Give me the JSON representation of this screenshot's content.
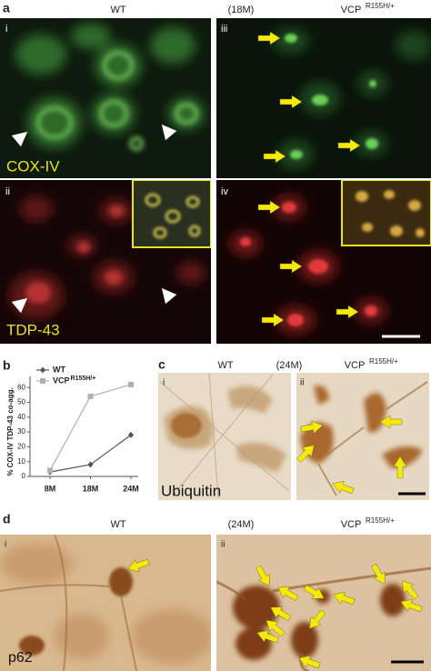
{
  "panels": {
    "a": {
      "label": "a",
      "wt": "WT",
      "age": "(18M)",
      "vcp": "VCP",
      "vcp_sup": "R155H/+",
      "sub": [
        "i",
        "ii",
        "iii",
        "iv"
      ],
      "stains": [
        "COX-IV",
        "TDP-43"
      ]
    },
    "b": {
      "label": "b"
    },
    "c": {
      "label": "c",
      "wt": "WT",
      "age": "(24M)",
      "vcp": "VCP",
      "vcp_sup": "R155H/+",
      "sub": [
        "i",
        "ii"
      ],
      "stain": "Ubiquitin"
    },
    "d": {
      "label": "d",
      "wt": "WT",
      "age": "(24M)",
      "vcp": "VCP",
      "vcp_sup": "R155H/+",
      "sub": [
        "i",
        "ii"
      ],
      "stain": "p62"
    }
  },
  "chart_data": {
    "type": "line",
    "y_label": "% COX-IV TDP-43 co-agg.",
    "categories": [
      "8M",
      "18M",
      "24M"
    ],
    "series": [
      {
        "name": "WT",
        "color": "#555555",
        "marker": "diamond",
        "values": [
          3,
          8,
          28
        ]
      },
      {
        "name": "VCP",
        "name_superscript": "R155H/+",
        "color": "#b0b0b0",
        "marker": "square",
        "values": [
          4,
          54,
          62
        ]
      }
    ],
    "ylim": [
      0,
      65
    ],
    "yticks": [
      0,
      10,
      20,
      30,
      40,
      50,
      60
    ]
  }
}
